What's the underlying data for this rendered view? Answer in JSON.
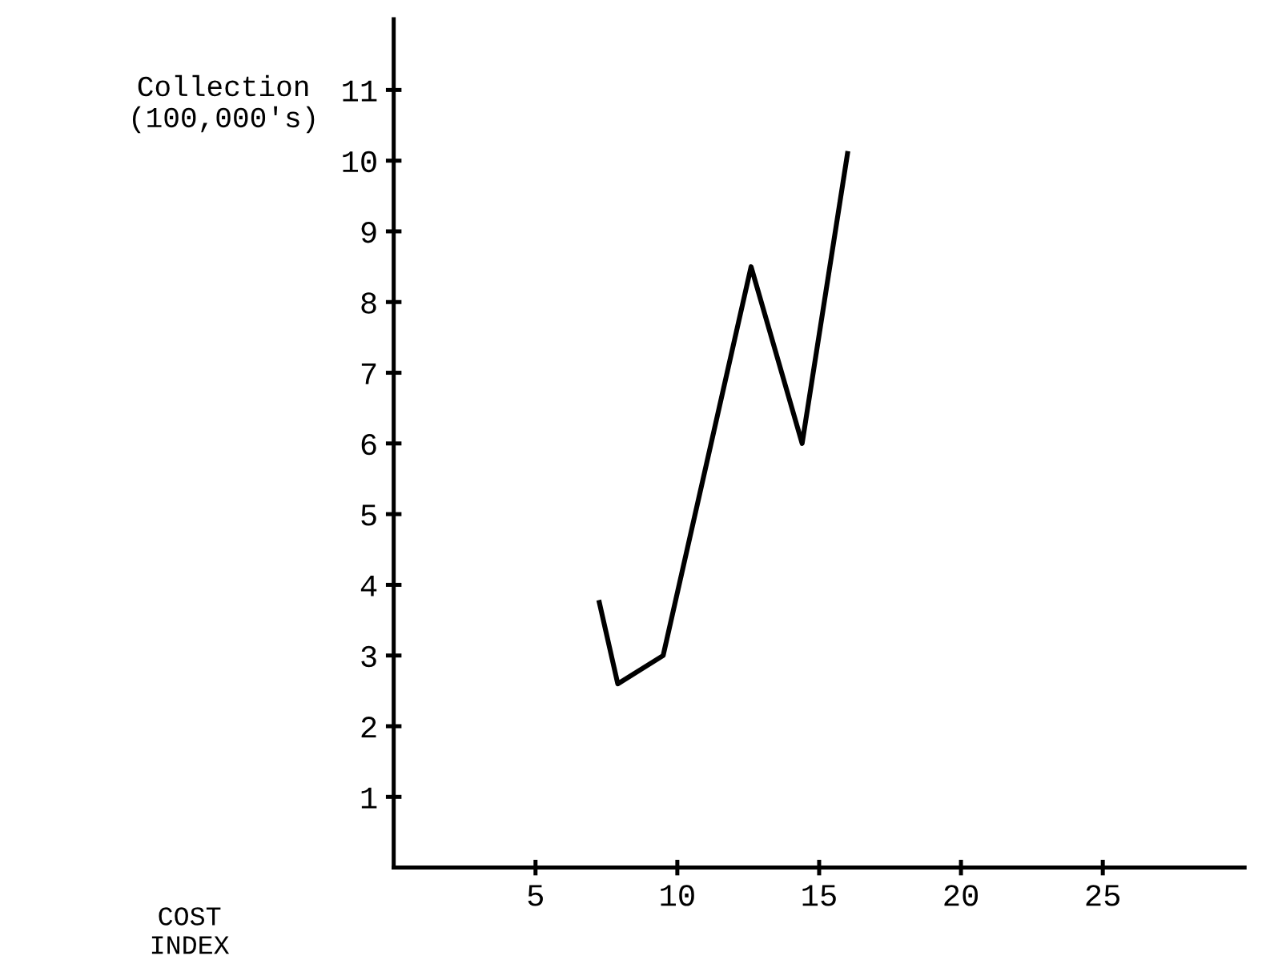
{
  "chart_data": {
    "type": "line",
    "xlabel": "COST\nINDEX",
    "ylabel": "Collection\n(100,000's)",
    "x": [
      7.25,
      7.9,
      9.5,
      12.6,
      14.4,
      16.0
    ],
    "values": [
      3.75,
      2.6,
      3.0,
      8.5,
      6.0,
      10.1
    ],
    "color": "#000000",
    "xlim": [
      0,
      30
    ],
    "ylim": [
      0,
      12
    ],
    "xticks": [
      5,
      10,
      15,
      20,
      25
    ],
    "yticks": [
      1,
      2,
      3,
      4,
      5,
      6,
      7,
      8,
      9,
      10,
      11
    ],
    "grid": false,
    "marker": "none",
    "line_style": "solid"
  }
}
